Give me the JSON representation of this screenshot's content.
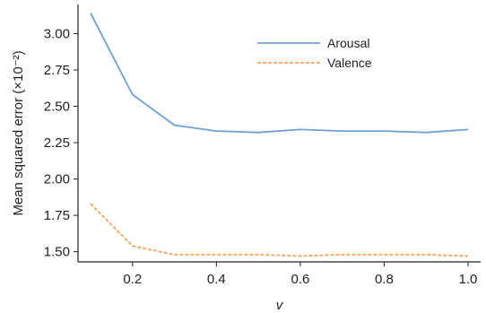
{
  "chart_data": {
    "type": "line",
    "title": "",
    "xlabel": "v",
    "ylabel": "Mean squared error (×10⁻²)",
    "x": [
      0.1,
      0.2,
      0.3,
      0.4,
      0.5,
      0.6,
      0.7,
      0.8,
      0.9,
      1.0
    ],
    "xlim": [
      0.07,
      1.03
    ],
    "ylim": [
      1.43,
      3.2
    ],
    "x_ticks": [
      0.2,
      0.4,
      0.6,
      0.8,
      1.0
    ],
    "x_tick_labels": [
      "0.2",
      "0.4",
      "0.6",
      "0.8",
      "1.0"
    ],
    "y_ticks": [
      1.5,
      1.75,
      2.0,
      2.25,
      2.5,
      2.75,
      3.0
    ],
    "y_tick_labels": [
      "1.50",
      "1.75",
      "2.00",
      "2.25",
      "2.50",
      "2.75",
      "3.00"
    ],
    "grid": false,
    "legend_position": "top-center",
    "series": [
      {
        "name": "Arousal",
        "values": [
          3.14,
          2.58,
          2.37,
          2.33,
          2.32,
          2.34,
          2.33,
          2.33,
          2.32,
          2.34
        ],
        "color": "#6fa1d2",
        "style": "solid"
      },
      {
        "name": "Valence",
        "values": [
          1.83,
          1.54,
          1.48,
          1.48,
          1.48,
          1.47,
          1.48,
          1.48,
          1.48,
          1.47
        ],
        "color": "#f5a45d",
        "style": "dashed"
      }
    ]
  }
}
